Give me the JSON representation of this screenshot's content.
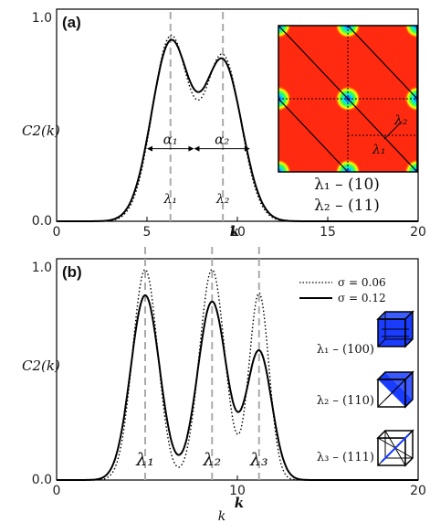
{
  "chart_data": [
    {
      "type": "line",
      "panel_label": "(a)",
      "xlabel": "k",
      "ylabel": "C2(k)",
      "xlim": [
        0,
        20
      ],
      "ylim": [
        0,
        1
      ],
      "xticks": [
        "0",
        "5",
        "10",
        "15",
        "20"
      ],
      "yticks": [
        "0.0",
        "1.0"
      ],
      "series": [
        {
          "style": "solid",
          "peaks": [
            {
              "x": 6.3,
              "h": 0.93,
              "w": 1.05
            },
            {
              "x": 9.2,
              "h": 0.83,
              "w": 1.05
            }
          ]
        },
        {
          "style": "dotted",
          "peaks": [
            {
              "x": 6.3,
              "h": 0.96,
              "w": 1.0
            },
            {
              "x": 9.2,
              "h": 0.86,
              "w": 1.0
            }
          ]
        }
      ],
      "markers": [
        {
          "x": 6.3,
          "label": "λ₁"
        },
        {
          "x": 9.2,
          "label": "λ₂"
        }
      ],
      "widths": [
        {
          "label": "α₁",
          "x0": 5.0,
          "x1": 7.6,
          "y": 0.38
        },
        {
          "label": "α₂",
          "x0": 7.6,
          "x1": 10.7,
          "y": 0.38
        }
      ],
      "inset": {
        "labels": [
          "λ₂",
          "λ₁"
        ],
        "legend": [
          "λ₁ – (10)",
          "λ₂ – (11)"
        ]
      }
    },
    {
      "type": "line",
      "panel_label": "(b)",
      "xlabel": "k",
      "ylabel": "C2(k)",
      "xlim": [
        0,
        20
      ],
      "ylim": [
        0,
        1
      ],
      "xticks": [
        "0",
        "10",
        "20"
      ],
      "yticks": [
        "0.0",
        "1.0"
      ],
      "series": [
        {
          "name": "σ = 0.06",
          "style": "dotted",
          "peaks": [
            {
              "x": 4.9,
              "h": 0.98,
              "w": 0.7
            },
            {
              "x": 8.6,
              "h": 0.98,
              "w": 0.7
            },
            {
              "x": 11.2,
              "h": 0.87,
              "w": 0.55
            }
          ]
        },
        {
          "name": "σ = 0.12",
          "style": "solid",
          "peaks": [
            {
              "x": 4.9,
              "h": 0.86,
              "w": 0.8
            },
            {
              "x": 8.6,
              "h": 0.83,
              "w": 0.8
            },
            {
              "x": 11.2,
              "h": 0.6,
              "w": 0.7
            }
          ]
        }
      ],
      "markers": [
        {
          "x": 4.9,
          "label": "λ₁"
        },
        {
          "x": 8.6,
          "label": "λ₂"
        },
        {
          "x": 11.2,
          "label": "λ₃"
        }
      ],
      "legend_position": "top-right",
      "cube_labels": [
        "λ₁ – (100)",
        "λ₂ – (110)",
        "λ₃ – (111)"
      ]
    }
  ]
}
